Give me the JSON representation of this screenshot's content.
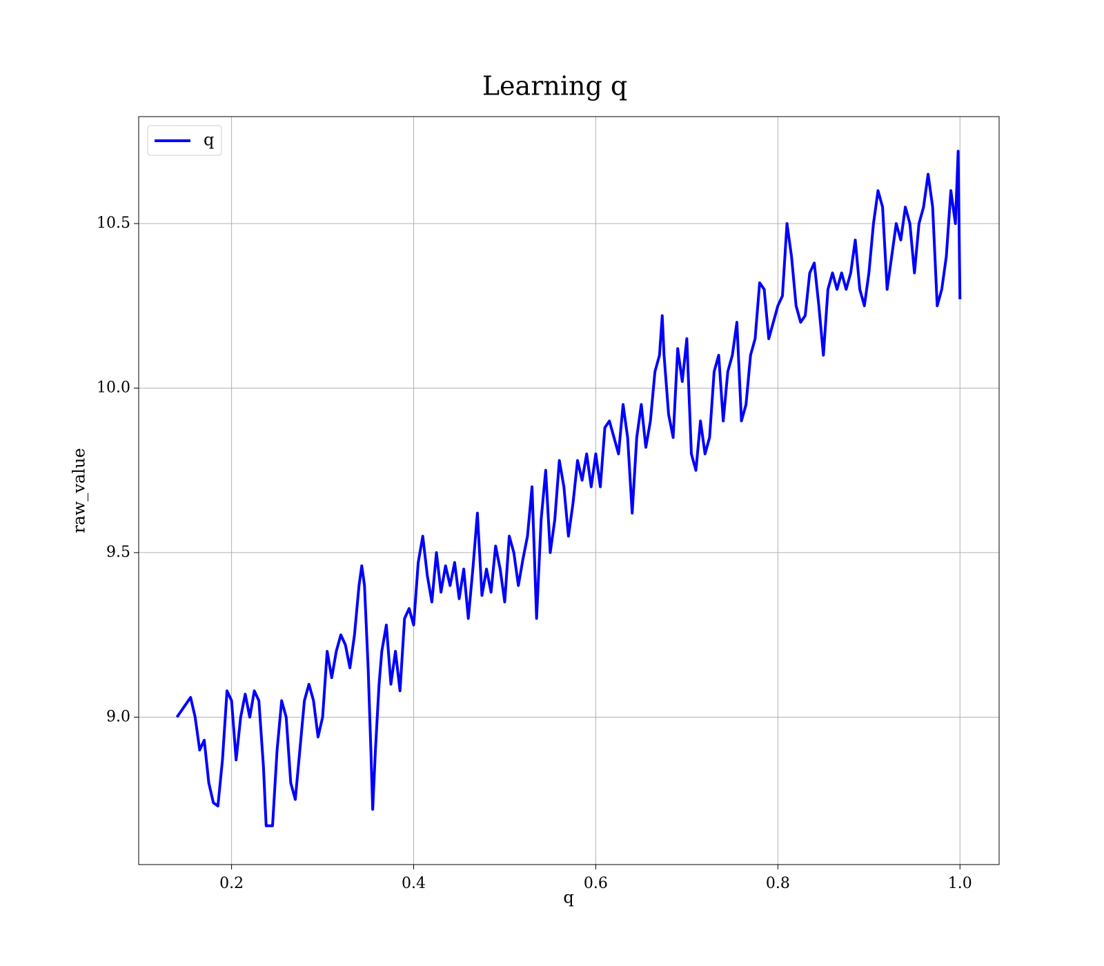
{
  "chart_data": {
    "type": "line",
    "title": "Learning q",
    "xlabel": "q",
    "ylabel": "raw_value",
    "x": [
      0.14,
      0.155,
      0.16,
      0.165,
      0.17,
      0.175,
      0.18,
      0.185,
      0.19,
      0.195,
      0.2,
      0.205,
      0.21,
      0.215,
      0.22,
      0.225,
      0.23,
      0.235,
      0.238,
      0.245,
      0.25,
      0.255,
      0.26,
      0.265,
      0.27,
      0.275,
      0.28,
      0.285,
      0.29,
      0.295,
      0.3,
      0.305,
      0.31,
      0.315,
      0.32,
      0.325,
      0.33,
      0.335,
      0.34,
      0.343,
      0.346,
      0.35,
      0.353,
      0.355,
      0.358,
      0.362,
      0.365,
      0.37,
      0.375,
      0.38,
      0.385,
      0.39,
      0.395,
      0.4,
      0.405,
      0.41,
      0.415,
      0.42,
      0.425,
      0.43,
      0.435,
      0.44,
      0.445,
      0.45,
      0.455,
      0.46,
      0.465,
      0.47,
      0.475,
      0.48,
      0.485,
      0.49,
      0.495,
      0.5,
      0.505,
      0.51,
      0.515,
      0.52,
      0.525,
      0.53,
      0.535,
      0.54,
      0.545,
      0.55,
      0.555,
      0.56,
      0.565,
      0.57,
      0.575,
      0.58,
      0.585,
      0.59,
      0.595,
      0.6,
      0.605,
      0.61,
      0.615,
      0.62,
      0.625,
      0.63,
      0.635,
      0.64,
      0.645,
      0.65,
      0.655,
      0.66,
      0.665,
      0.67,
      0.673,
      0.675,
      0.68,
      0.685,
      0.69,
      0.695,
      0.7,
      0.705,
      0.71,
      0.715,
      0.72,
      0.725,
      0.73,
      0.735,
      0.74,
      0.745,
      0.75,
      0.755,
      0.76,
      0.765,
      0.77,
      0.775,
      0.78,
      0.785,
      0.79,
      0.795,
      0.8,
      0.805,
      0.81,
      0.815,
      0.82,
      0.825,
      0.83,
      0.835,
      0.84,
      0.845,
      0.85,
      0.855,
      0.86,
      0.865,
      0.87,
      0.875,
      0.88,
      0.885,
      0.89,
      0.895,
      0.9,
      0.905,
      0.91,
      0.915,
      0.92,
      0.925,
      0.93,
      0.935,
      0.94,
      0.945,
      0.95,
      0.955,
      0.96,
      0.965,
      0.97,
      0.975,
      0.98,
      0.985,
      0.99,
      0.995,
      0.998,
      1.0
    ],
    "series": [
      {
        "name": "q",
        "color": "#0000ff",
        "values": [
          9.0,
          9.06,
          9.0,
          8.9,
          8.93,
          8.8,
          8.74,
          8.73,
          8.87,
          9.08,
          9.05,
          8.87,
          9.0,
          9.07,
          9.0,
          9.08,
          9.05,
          8.85,
          8.67,
          8.67,
          8.9,
          9.05,
          9.0,
          8.8,
          8.75,
          8.9,
          9.05,
          9.1,
          9.05,
          8.94,
          9.0,
          9.2,
          9.12,
          9.2,
          9.25,
          9.22,
          9.15,
          9.25,
          9.4,
          9.46,
          9.4,
          9.15,
          8.9,
          8.72,
          8.9,
          9.1,
          9.2,
          9.28,
          9.1,
          9.2,
          9.08,
          9.3,
          9.33,
          9.28,
          9.47,
          9.55,
          9.43,
          9.35,
          9.5,
          9.38,
          9.46,
          9.4,
          9.47,
          9.36,
          9.45,
          9.3,
          9.45,
          9.62,
          9.37,
          9.45,
          9.38,
          9.52,
          9.45,
          9.35,
          9.55,
          9.5,
          9.4,
          9.48,
          9.55,
          9.7,
          9.3,
          9.6,
          9.75,
          9.5,
          9.6,
          9.78,
          9.7,
          9.55,
          9.65,
          9.78,
          9.72,
          9.8,
          9.7,
          9.8,
          9.7,
          9.88,
          9.9,
          9.85,
          9.8,
          9.95,
          9.85,
          9.62,
          9.85,
          9.95,
          9.82,
          9.9,
          10.05,
          10.1,
          10.22,
          10.1,
          9.92,
          9.85,
          10.12,
          10.02,
          10.15,
          9.8,
          9.75,
          9.9,
          9.8,
          9.85,
          10.05,
          10.1,
          9.9,
          10.05,
          10.1,
          10.2,
          9.9,
          9.95,
          10.1,
          10.15,
          10.32,
          10.3,
          10.15,
          10.2,
          10.25,
          10.28,
          10.5,
          10.4,
          10.25,
          10.2,
          10.22,
          10.35,
          10.38,
          10.25,
          10.1,
          10.3,
          10.35,
          10.3,
          10.35,
          10.3,
          10.35,
          10.45,
          10.3,
          10.25,
          10.35,
          10.5,
          10.6,
          10.55,
          10.3,
          10.4,
          10.5,
          10.45,
          10.55,
          10.5,
          10.35,
          10.5,
          10.55,
          10.65,
          10.55,
          10.25,
          10.3,
          10.4,
          10.6,
          10.5,
          10.72,
          10.27
        ]
      }
    ],
    "xlim": [
      0.098,
      1.043
    ],
    "ylim": [
      8.552,
      10.825
    ],
    "xticks": [
      0.2,
      0.4,
      0.6,
      0.8,
      {
        "value": 1.0,
        "label": "1.0"
      }
    ],
    "yticks": [
      {
        "value": 9.0,
        "label": "9.0"
      },
      9.5,
      {
        "value": 10.0,
        "label": "10.0"
      },
      10.5
    ],
    "grid": true,
    "legend": "upper left"
  }
}
